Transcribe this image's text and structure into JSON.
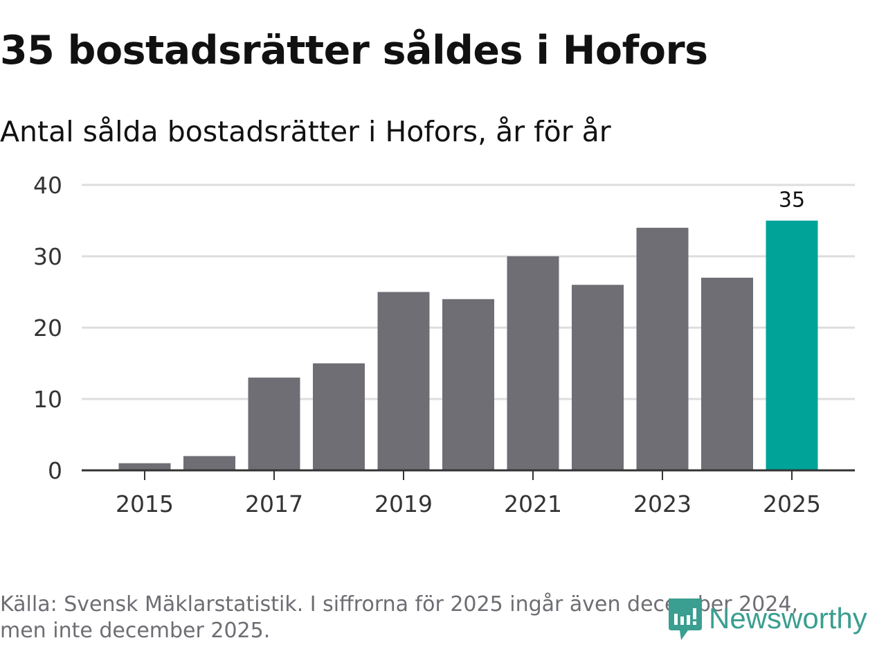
{
  "title": "35 bostadsrätter såldes i Hofors",
  "subtitle": "Antal sålda bostadsrätter i Hofors, år för år",
  "source": [
    "Källa: Svensk Mäklarstatistik. I siffrorna för 2025 ingår även december 2024,",
    "men inte december 2025."
  ],
  "logo": "Newsworthy",
  "colors": {
    "bar": "#6f6e75",
    "highlight": "#00a398",
    "grid": "#dddddd",
    "axis": "#333333"
  },
  "chart_data": {
    "type": "bar",
    "title": "35 bostadsrätter såldes i Hofors",
    "categories": [
      "2015",
      "2016",
      "2017",
      "2018",
      "2019",
      "2020",
      "2021",
      "2022",
      "2023",
      "2024",
      "2025"
    ],
    "values": [
      1,
      2,
      13,
      15,
      25,
      24,
      30,
      26,
      34,
      27,
      35
    ],
    "highlight_index": 10,
    "data_labels": [
      {
        "index": 10,
        "text": "35"
      }
    ],
    "x_tick_labels": [
      "2015",
      "2017",
      "2019",
      "2021",
      "2023",
      "2025"
    ],
    "y_ticks": [
      0,
      10,
      20,
      30,
      40
    ],
    "ylim": [
      0,
      40
    ],
    "xlabel": "",
    "ylabel": "",
    "grid": true
  }
}
